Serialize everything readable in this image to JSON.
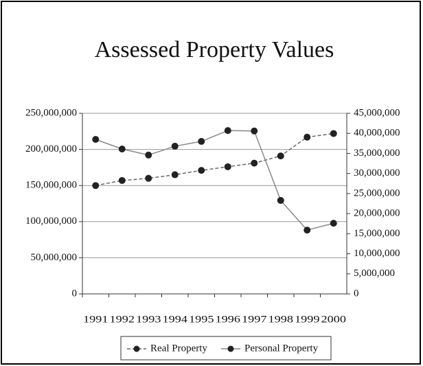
{
  "chart_data": {
    "type": "line",
    "title": "Assessed Property Values",
    "categories": [
      "1991",
      "1992",
      "1993",
      "1994",
      "1995",
      "1996",
      "1997",
      "1998",
      "1999",
      "2000"
    ],
    "series": [
      {
        "name": "Real Property",
        "color": "#666666",
        "dash": true,
        "values": [
          150000000,
          157000000,
          160000000,
          165000000,
          171000000,
          176000000,
          181000000,
          191000000,
          217000000,
          222000000
        ]
      },
      {
        "name": "Personal Property",
        "color": "#888888",
        "axis": "y2",
        "values": [
          38500000,
          36100000,
          34600000,
          36800000,
          38000000,
          40700000,
          40600000,
          23300000,
          15900000,
          17600000
        ]
      }
    ],
    "ylim": [
      0,
      250000000
    ],
    "yticks": [
      0,
      {
        "value": 50000000,
        "label": "50,000,000"
      },
      {
        "value": 100000000,
        "label": "100,000,000"
      },
      {
        "value": 150000000,
        "label": "150,000,000"
      },
      {
        "value": 200000000,
        "label": "200,000,000"
      },
      {
        "value": 250000000,
        "label": "250,000,000"
      }
    ],
    "y2lim": [
      0,
      45000000
    ],
    "y2ticks": [
      0,
      {
        "value": 5000000,
        "label": "5,000,000"
      },
      {
        "value": 10000000,
        "label": "10,000,000"
      },
      {
        "value": 15000000,
        "label": "15,000,000"
      },
      {
        "value": 20000000,
        "label": "20,000,000"
      },
      {
        "value": 25000000,
        "label": "25,000,000"
      },
      {
        "value": 30000000,
        "label": "30,000,000"
      },
      {
        "value": 35000000,
        "label": "35,000,000"
      },
      {
        "value": 40000000,
        "label": "40,000,000"
      },
      {
        "value": 45000000,
        "label": "45,000,000"
      }
    ],
    "grid": true
  }
}
